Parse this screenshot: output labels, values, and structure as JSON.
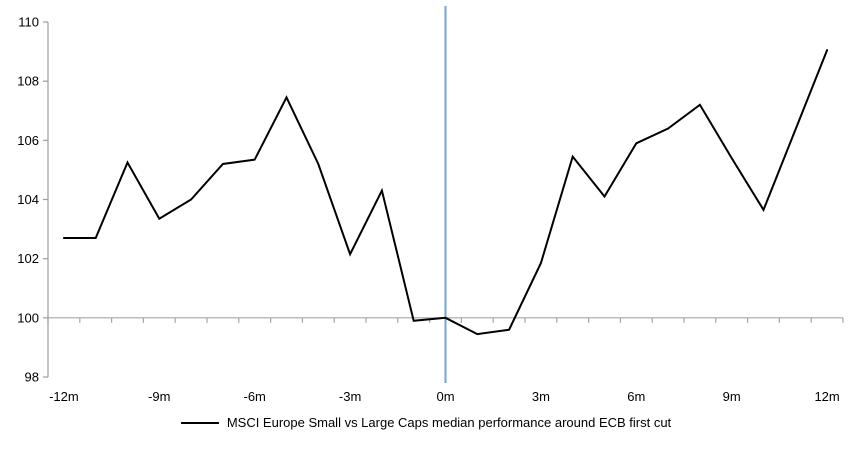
{
  "chart_data": {
    "type": "line",
    "x_categories": [
      "-12m",
      "-11m",
      "-10m",
      "-9m",
      "-8m",
      "-7m",
      "-6m",
      "-5m",
      "-4m",
      "-3m",
      "-2m",
      "-1m",
      "0m",
      "1m",
      "2m",
      "3m",
      "4m",
      "5m",
      "6m",
      "7m",
      "8m",
      "9m",
      "10m",
      "11m",
      "12m"
    ],
    "x_tick_indices": [
      0,
      3,
      6,
      9,
      12,
      15,
      18,
      21,
      24
    ],
    "x_tick_labels": [
      "-12m",
      "-9m",
      "-6m",
      "-3m",
      "0m",
      "3m",
      "6m",
      "9m",
      "12m"
    ],
    "series": [
      {
        "name": "MSCI Europe Small vs Large Caps median performance around ECB first cut",
        "color": "#000000",
        "values": [
          102.7,
          102.7,
          105.25,
          103.35,
          104.0,
          105.2,
          105.35,
          107.45,
          105.2,
          102.15,
          104.3,
          99.9,
          100.0,
          99.45,
          99.6,
          101.85,
          105.45,
          104.1,
          105.9,
          106.4,
          107.2,
          105.4,
          103.65,
          106.35,
          109.05
        ]
      }
    ],
    "ylim": [
      98,
      110
    ],
    "y_ticks": [
      98,
      100,
      102,
      104,
      106,
      108,
      110
    ],
    "baseline_value": 100,
    "event_line": {
      "x_index": 12,
      "x_label": "0m",
      "color": "#74A3D6"
    },
    "axis_color": "#9D9D9D",
    "baseline_color": "#A6A6A6",
    "grid": "off",
    "legend": {
      "position": "bottom-center",
      "label": "MSCI Europe Small vs Large Caps median performance around ECB first cut"
    }
  }
}
